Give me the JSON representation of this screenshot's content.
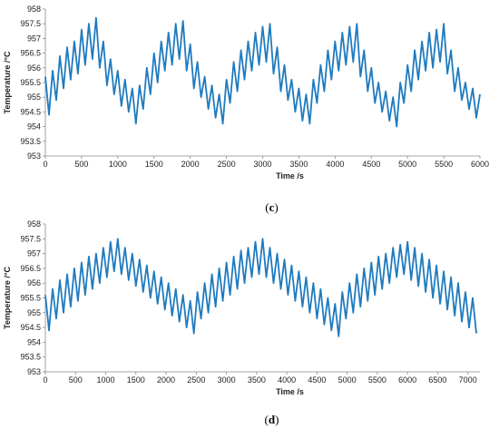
{
  "chart_data": [
    {
      "type": "line",
      "panel_label": "(c)",
      "xlabel": "Time /s",
      "ylabel": "Temperature /°C",
      "xlim": [
        0,
        6000
      ],
      "ylim": [
        953,
        958
      ],
      "xticks": [
        0,
        500,
        1000,
        1500,
        2000,
        2500,
        3000,
        3500,
        4000,
        4500,
        5000,
        5500,
        6000
      ],
      "yticks": [
        953,
        953.5,
        954,
        954.5,
        955,
        955.5,
        956,
        956.5,
        957,
        957.5,
        958
      ],
      "ytick_labels": [
        "953",
        "953.5",
        "954",
        "954.5",
        "955",
        "955.5",
        "956",
        "956.5",
        "957",
        "957.5",
        "958"
      ],
      "grid": false,
      "color": "#1f7bbf",
      "series": [
        {
          "x": [
            0,
            50,
            100,
            150,
            200,
            250,
            300,
            350,
            400,
            450,
            500,
            550,
            600,
            650,
            700,
            750,
            800,
            850,
            900,
            950,
            1000,
            1050,
            1100,
            1150,
            1200,
            1250,
            1300,
            1350,
            1400,
            1450,
            1500,
            1550,
            1600,
            1650,
            1700,
            1750,
            1800,
            1850,
            1900,
            1950,
            2000,
            2050,
            2100,
            2150,
            2200,
            2250,
            2300,
            2350,
            2400,
            2450,
            2500,
            2550,
            2600,
            2650,
            2700,
            2750,
            2800,
            2850,
            2900,
            2950,
            3000,
            3050,
            3100,
            3150,
            3200,
            3250,
            3300,
            3350,
            3400,
            3450,
            3500,
            3550,
            3600,
            3650,
            3700,
            3750,
            3800,
            3850,
            3900,
            3950,
            4000,
            4050,
            4100,
            4150,
            4200,
            4250,
            4300,
            4350,
            4400,
            4450,
            4500,
            4550,
            4600,
            4650,
            4700,
            4750,
            4800,
            4850,
            4900,
            4950,
            5000,
            5050,
            5100,
            5150,
            5200,
            5250,
            5300,
            5350,
            5400,
            5450,
            5500,
            5550,
            5600,
            5650,
            5700,
            5750,
            5800,
            5850,
            5900,
            5950,
            6000
          ],
          "y": [
            955.7,
            954.4,
            955.9,
            954.9,
            956.4,
            955.3,
            956.7,
            955.6,
            956.9,
            955.8,
            957.3,
            956.1,
            957.5,
            956.3,
            957.7,
            956.0,
            956.9,
            955.4,
            956.3,
            955.1,
            955.9,
            954.7,
            955.6,
            954.5,
            955.3,
            954.1,
            955.4,
            954.6,
            956.0,
            955.1,
            956.5,
            955.5,
            956.9,
            955.9,
            957.2,
            956.1,
            957.5,
            956.3,
            957.6,
            955.9,
            956.8,
            955.3,
            956.2,
            955.0,
            955.7,
            954.6,
            955.4,
            954.3,
            955.1,
            954.1,
            955.6,
            954.8,
            956.2,
            955.2,
            956.6,
            955.6,
            956.9,
            955.9,
            957.2,
            956.1,
            957.4,
            956.2,
            957.5,
            955.8,
            956.7,
            955.2,
            956.1,
            954.9,
            955.6,
            954.5,
            955.3,
            954.2,
            955.1,
            954.1,
            955.6,
            954.8,
            956.1,
            955.2,
            956.6,
            955.6,
            956.9,
            955.9,
            957.2,
            956.1,
            957.4,
            956.2,
            957.5,
            955.7,
            956.6,
            955.2,
            956.0,
            954.8,
            955.5,
            954.5,
            955.2,
            954.2,
            955.0,
            954.0,
            955.5,
            954.8,
            956.1,
            955.2,
            956.6,
            955.6,
            956.9,
            955.9,
            957.2,
            956.0,
            957.3,
            956.2,
            957.5,
            955.8,
            956.6,
            955.2,
            956.0,
            954.9,
            955.5,
            954.6,
            955.3,
            954.3,
            955.1
          ]
        }
      ]
    },
    {
      "type": "line",
      "panel_label": "(d)",
      "xlabel": "Time /s",
      "ylabel": "Temperature /°C",
      "xlim": [
        0,
        7200
      ],
      "ylim": [
        953,
        958
      ],
      "xticks": [
        0,
        500,
        1000,
        1500,
        2000,
        2500,
        3000,
        3500,
        4000,
        4500,
        5000,
        5500,
        6000,
        6500,
        7000
      ],
      "yticks": [
        953,
        953.5,
        954,
        954.5,
        955,
        955.5,
        956,
        956.5,
        957,
        957.5,
        958
      ],
      "ytick_labels": [
        "953",
        "953.5",
        "954",
        "954.5",
        "955",
        "955.5",
        "956",
        "956.5",
        "957",
        "957.5",
        "958"
      ],
      "grid": false,
      "color": "#1f7bbf",
      "series": [
        {
          "x": [
            0,
            60,
            120,
            180,
            240,
            300,
            360,
            420,
            480,
            540,
            600,
            660,
            720,
            780,
            840,
            900,
            960,
            1020,
            1080,
            1140,
            1200,
            1260,
            1320,
            1380,
            1440,
            1500,
            1560,
            1620,
            1680,
            1740,
            1800,
            1860,
            1920,
            1980,
            2040,
            2100,
            2160,
            2220,
            2280,
            2340,
            2400,
            2460,
            2520,
            2580,
            2640,
            2700,
            2760,
            2820,
            2880,
            2940,
            3000,
            3060,
            3120,
            3180,
            3240,
            3300,
            3360,
            3420,
            3480,
            3540,
            3600,
            3660,
            3720,
            3780,
            3840,
            3900,
            3960,
            4020,
            4080,
            4140,
            4200,
            4260,
            4320,
            4380,
            4440,
            4500,
            4560,
            4620,
            4680,
            4740,
            4800,
            4860,
            4920,
            4980,
            5040,
            5100,
            5160,
            5220,
            5280,
            5340,
            5400,
            5460,
            5520,
            5580,
            5640,
            5700,
            5760,
            5820,
            5880,
            5940,
            6000,
            6060,
            6120,
            6180,
            6240,
            6300,
            6360,
            6420,
            6480,
            6540,
            6600,
            6660,
            6720,
            6780,
            6840,
            6900,
            6960,
            7020,
            7080,
            7140
          ],
          "y": [
            955.6,
            954.4,
            955.8,
            954.8,
            956.1,
            955.0,
            956.3,
            955.2,
            956.5,
            955.4,
            956.7,
            955.6,
            956.9,
            955.8,
            957.0,
            956.0,
            957.2,
            956.2,
            957.4,
            956.4,
            957.5,
            956.3,
            957.2,
            956.1,
            957.0,
            955.9,
            956.8,
            955.7,
            956.6,
            955.5,
            956.4,
            955.3,
            956.2,
            955.1,
            956.0,
            954.9,
            955.8,
            954.7,
            955.6,
            954.5,
            955.4,
            954.3,
            955.7,
            954.8,
            956.0,
            955.0,
            956.3,
            955.2,
            956.5,
            955.4,
            956.7,
            955.6,
            956.9,
            955.8,
            957.1,
            956.0,
            957.2,
            956.2,
            957.4,
            956.3,
            957.5,
            956.2,
            957.2,
            956.0,
            957.0,
            955.8,
            956.8,
            955.6,
            956.6,
            955.4,
            956.4,
            955.2,
            956.2,
            955.0,
            956.0,
            954.8,
            955.8,
            954.6,
            955.5,
            954.4,
            955.3,
            954.2,
            955.7,
            954.8,
            956.0,
            955.0,
            956.3,
            955.2,
            956.5,
            955.4,
            956.7,
            955.6,
            956.9,
            955.8,
            957.0,
            956.0,
            957.2,
            956.2,
            957.3,
            956.3,
            957.4,
            956.1,
            957.2,
            955.9,
            957.0,
            955.7,
            956.8,
            955.5,
            956.6,
            955.3,
            956.4,
            955.1,
            956.2,
            954.9,
            956.0,
            954.7,
            955.7,
            954.5,
            955.5,
            954.3
          ]
        }
      ]
    }
  ]
}
